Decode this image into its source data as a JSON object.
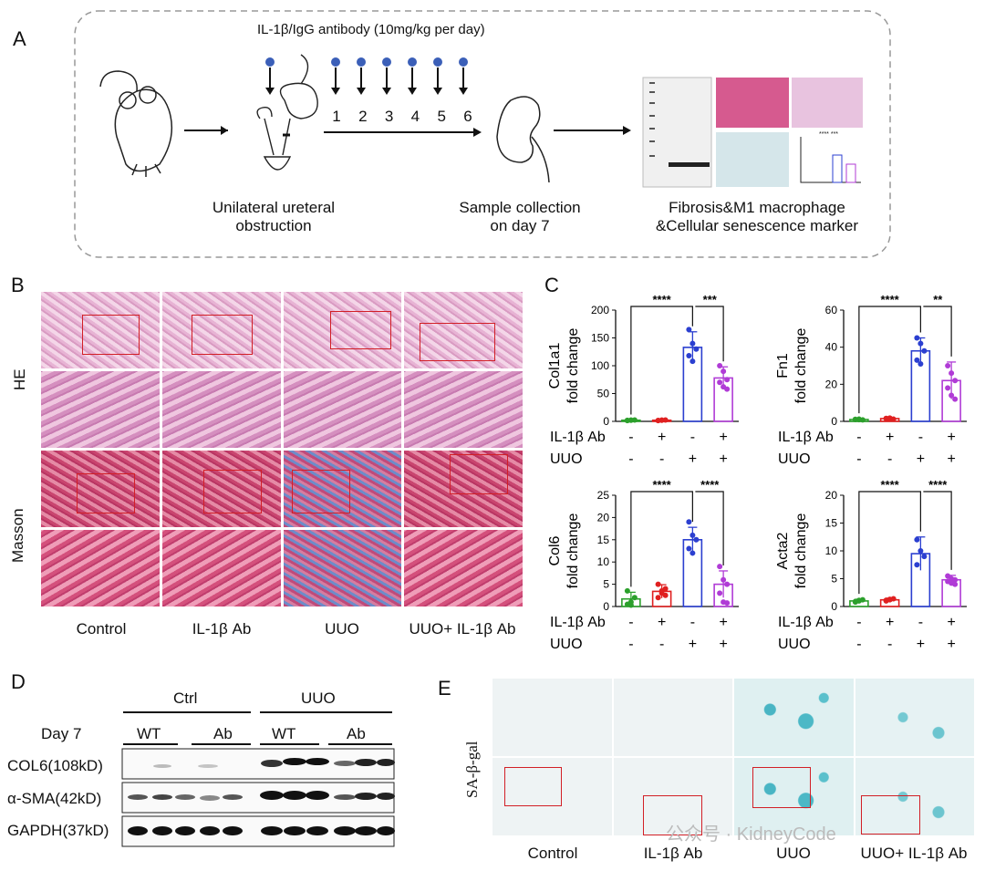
{
  "panel_a": {
    "label": "A",
    "treatment": "IL-1β/IgG antibody  (10mg/kg per day)",
    "days": [
      "1",
      "2",
      "3",
      "4",
      "5",
      "6"
    ],
    "step1": "Unilateral ureteral",
    "step1b": "obstruction",
    "step2": "Sample collection",
    "step2b": "on day 7",
    "step3": "Fibrosis&M1 macrophage",
    "step3b": "&Cellular senescence marker",
    "mini_sig": "****  ***"
  },
  "panel_b": {
    "label": "B",
    "row_labels": [
      "HE",
      "Masson"
    ],
    "col_labels": [
      "Control",
      "IL-1β Ab",
      "UUO",
      "UUO+ IL-1β Ab"
    ]
  },
  "panel_c": {
    "label": "C",
    "row1": "IL-1β Ab",
    "row2": "UUO"
  },
  "chart_data": [
    {
      "type": "bar",
      "ylabel": "Col1a1\nfold change",
      "ylim": [
        0,
        200
      ],
      "ticks": [
        0,
        50,
        100,
        150,
        200
      ],
      "categories": [
        "-/-",
        "+/-",
        "-/+",
        "+/+"
      ],
      "values": [
        2,
        2,
        133,
        78
      ],
      "errors": [
        0.5,
        0.5,
        28,
        20
      ],
      "sig": [
        "****",
        "***"
      ],
      "points": [
        [
          1.5,
          2,
          2.5,
          1.8,
          2.2
        ],
        [
          1.5,
          2,
          2.5,
          1.7,
          2.3
        ],
        [
          165,
          140,
          130,
          118,
          108
        ],
        [
          100,
          90,
          75,
          70,
          62,
          58
        ]
      ],
      "labels_row1": [
        "-",
        "+",
        "-",
        "+"
      ],
      "labels_row2": [
        "-",
        "-",
        "+",
        "+"
      ]
    },
    {
      "type": "bar",
      "ylabel": "Fn1\nfold change",
      "ylim": [
        0,
        60
      ],
      "ticks": [
        0,
        20,
        40,
        60
      ],
      "categories": [
        "-/-",
        "+/-",
        "-/+",
        "+/+"
      ],
      "values": [
        1,
        1.5,
        38,
        22
      ],
      "errors": [
        0.4,
        0.5,
        7,
        10
      ],
      "sig": [
        "****",
        "**"
      ],
      "points": [
        [
          1,
          1.2,
          0.8,
          1.1,
          0.9
        ],
        [
          1.5,
          1.8,
          1.2,
          1.6,
          1.4
        ],
        [
          45,
          42,
          38,
          33,
          31
        ],
        [
          30,
          26,
          22,
          18,
          14,
          12
        ]
      ],
      "labels_row1": [
        "-",
        "+",
        "-",
        "+"
      ],
      "labels_row2": [
        "-",
        "-",
        "+",
        "+"
      ]
    },
    {
      "type": "bar",
      "ylabel": "Col6\nfold change",
      "ylim": [
        0,
        25
      ],
      "ticks": [
        0,
        5,
        10,
        15,
        20,
        25
      ],
      "categories": [
        "-/-",
        "+/-",
        "-/+",
        "+/+"
      ],
      "values": [
        1.7,
        3.4,
        15,
        5
      ],
      "errors": [
        1.5,
        1.5,
        2.8,
        3
      ],
      "sig": [
        "****",
        "****"
      ],
      "points": [
        [
          0.5,
          1,
          2,
          3.5,
          0.3
        ],
        [
          2,
          3,
          4,
          5,
          3.5,
          2.5
        ],
        [
          19,
          16,
          15,
          13,
          12
        ],
        [
          9,
          6,
          5,
          3,
          1,
          0.8
        ]
      ],
      "labels_row1": [
        "-",
        "+",
        "-",
        "+"
      ],
      "labels_row2": [
        "-",
        "-",
        "+",
        "+"
      ]
    },
    {
      "type": "bar",
      "ylabel": "Acta2\nfold change",
      "ylim": [
        0,
        20
      ],
      "ticks": [
        0,
        5,
        10,
        15,
        20
      ],
      "categories": [
        "-/-",
        "+/-",
        "-/+",
        "+/+"
      ],
      "values": [
        1,
        1.2,
        9.5,
        4.8
      ],
      "errors": [
        0.3,
        0.3,
        3,
        0.8
      ],
      "sig": [
        "****",
        "****"
      ],
      "points": [
        [
          0.8,
          1,
          1.2,
          0.9,
          1.1
        ],
        [
          1,
          1.2,
          1.4,
          1.1,
          1.3
        ],
        [
          12,
          10,
          9,
          7.5
        ],
        [
          5.5,
          5,
          4.8,
          4.5,
          4.2,
          4
        ]
      ],
      "labels_row1": [
        "-",
        "+",
        "-",
        "+"
      ],
      "labels_row2": [
        "-",
        "-",
        "+",
        "+"
      ]
    }
  ],
  "panel_d": {
    "label": "D",
    "group1": "Ctrl",
    "group2": "UUO",
    "day_label": "Day 7",
    "sub": [
      "WT",
      "Ab",
      "WT",
      "Ab"
    ],
    "rows": [
      "COL6(108kD)",
      "α-SMA(42kD)",
      "GAPDH(37kD)"
    ]
  },
  "panel_e": {
    "label": "E",
    "row_label": "SA-β-gal",
    "col_labels": [
      "Control",
      "IL-1β Ab",
      "UUO",
      "UUO+ IL-1β Ab"
    ]
  },
  "watermark": "公众号 · KidneyCode",
  "colors": {
    "control": "#2ca02c",
    "ab": "#e02020",
    "uuo": "#2b3fd0",
    "uuo_ab": "#b03bd6",
    "box": "#d21f26"
  }
}
